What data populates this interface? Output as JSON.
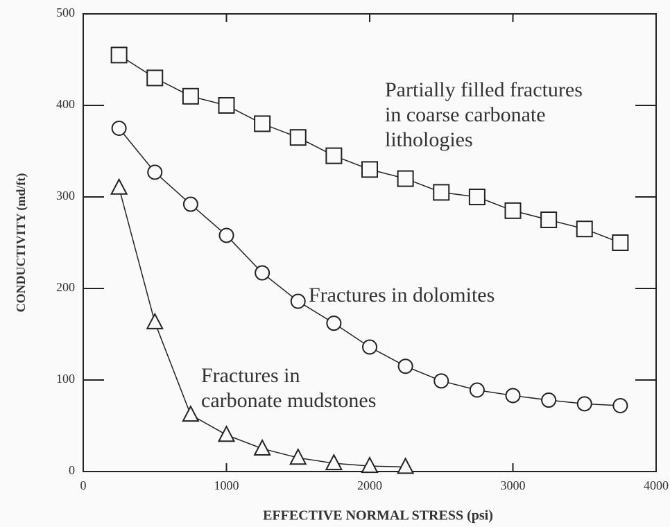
{
  "chart_data": {
    "type": "line",
    "xlabel": "EFFECTIVE NORMAL STRESS (psi)",
    "ylabel": "CONDUCTIVITY (md/ft)",
    "xlim": [
      0,
      4000
    ],
    "xticks": [
      0,
      1000,
      2000,
      3000,
      4000
    ],
    "ylim": [
      0,
      500
    ],
    "yticks": [
      0,
      100,
      200,
      300,
      400,
      500
    ],
    "grid": false,
    "annotations": [
      [
        "Partially filled fractures",
        "in coarse carbonate",
        "lithologies"
      ],
      [
        "Fractures in dolomites"
      ],
      [
        "Fractures in",
        "carbonate mudstones"
      ]
    ],
    "series": [
      {
        "marker": "square",
        "color": "#222222",
        "x": [
          250,
          500,
          750,
          1000,
          1250,
          1500,
          1750,
          2000,
          2250,
          2500,
          2750,
          3000,
          3250,
          3500,
          3750
        ],
        "values": [
          455,
          430,
          410,
          400,
          380,
          365,
          345,
          330,
          320,
          305,
          300,
          285,
          275,
          265,
          250
        ]
      },
      {
        "marker": "circle",
        "color": "#222222",
        "x": [
          250,
          500,
          750,
          1000,
          1250,
          1500,
          1750,
          2000,
          2250,
          2500,
          2750,
          3000,
          3250,
          3500,
          3750
        ],
        "values": [
          375,
          327,
          292,
          258,
          217,
          186,
          162,
          136,
          115,
          99,
          89,
          83,
          78,
          74,
          72
        ]
      },
      {
        "marker": "triangle",
        "color": "#222222",
        "x": [
          250,
          500,
          750,
          1000,
          1250,
          1500,
          1750,
          2000,
          2250
        ],
        "values": [
          310,
          163,
          62,
          40,
          25,
          15,
          9,
          6,
          5
        ]
      }
    ]
  }
}
